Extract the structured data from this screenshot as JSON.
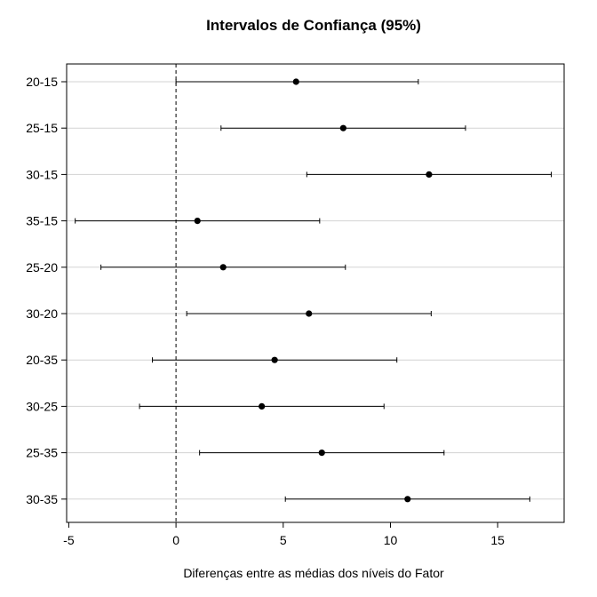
{
  "chart_data": {
    "type": "scatter",
    "title": "Intervalos de Confiança (95%)",
    "xlabel": "Diferenças entre as médias dos níveis do Fator",
    "ylabel": "",
    "xlim": [
      -5.1,
      18.1
    ],
    "xticks": [
      -5,
      0,
      5,
      10,
      15
    ],
    "xtick_labels": [
      "-5",
      "0",
      "5",
      "10",
      "15"
    ],
    "reference_line": {
      "x": 0,
      "style": "dashed"
    },
    "grid": "horizontal",
    "colors": {
      "point": "#000000",
      "interval": "#000000",
      "grid": "#d3d3d3",
      "frame": "#000000"
    },
    "categories": [
      "20-15",
      "25-15",
      "30-15",
      "35-15",
      "25-20",
      "30-20",
      "20-35",
      "30-25",
      "25-35",
      "30-35"
    ],
    "estimates": [
      5.6,
      7.8,
      11.8,
      1.0,
      2.2,
      6.2,
      4.6,
      4.0,
      6.8,
      10.8
    ],
    "lower": [
      0.0,
      2.1,
      6.1,
      -4.7,
      -3.5,
      0.5,
      -1.1,
      -1.7,
      1.1,
      5.1
    ],
    "upper": [
      11.3,
      13.5,
      17.5,
      6.7,
      7.9,
      11.9,
      10.3,
      9.7,
      12.5,
      16.5
    ]
  }
}
